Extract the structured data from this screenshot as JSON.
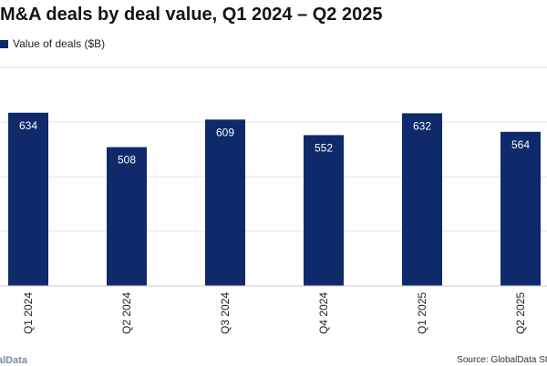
{
  "header": {
    "title": "M&A deals by deal value, Q1 2024 – Q2 2025"
  },
  "legend": {
    "label": "Value of deals ($B)",
    "color": "#0e2a6b"
  },
  "footer": {
    "brand": "alData",
    "source": "Source: GlobalData Str"
  },
  "chart_data": {
    "type": "bar",
    "title": "M&A deals by deal value, Q1 2024 – Q2 2025",
    "xlabel": "",
    "ylabel": "",
    "categories": [
      "Q1 2024",
      "Q2 2024",
      "Q3 2024",
      "Q4 2024",
      "Q1 2025",
      "Q2 2025"
    ],
    "series": [
      {
        "name": "Value of deals ($B)",
        "values": [
          634,
          508,
          609,
          552,
          632,
          564
        ],
        "color": "#0e2a6b"
      }
    ],
    "data_labels": [
      "634",
      "508",
      "609",
      "552",
      "632",
      "564"
    ],
    "ylim": [
      0,
      800
    ],
    "grid": true,
    "legend_position": "top-left"
  }
}
